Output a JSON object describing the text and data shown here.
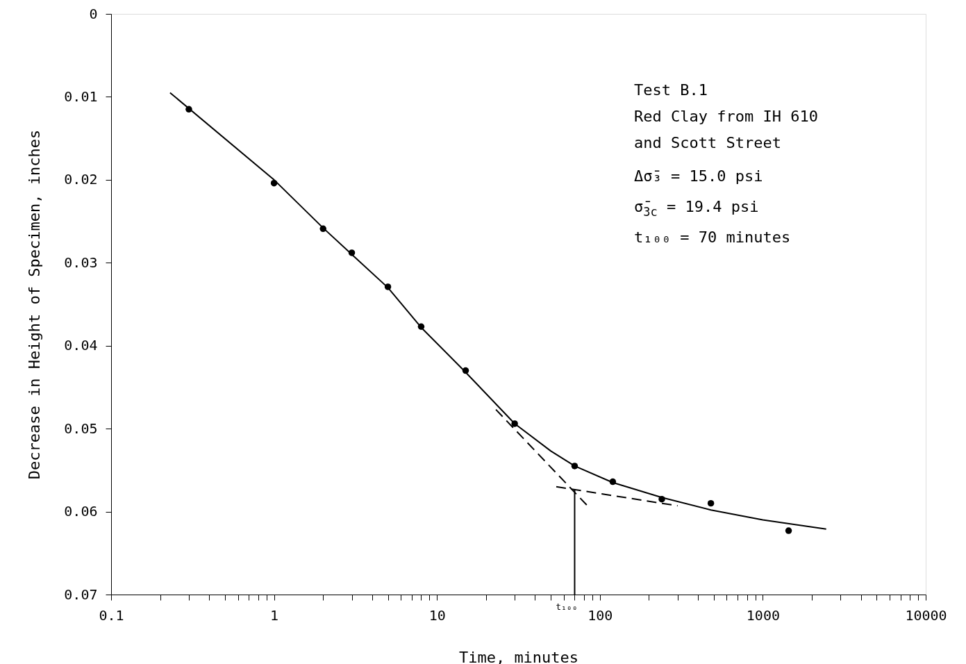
{
  "chart_data": {
    "type": "scatter",
    "xlabel": "Time, minutes",
    "ylabel": "Decrease in Height of Specimen, inches",
    "log": "x",
    "grid": false,
    "xlim": [
      0.1,
      10000
    ],
    "ylim": [
      0.07,
      0
    ],
    "xticks": [
      0.1,
      {
        "value": 0.2,
        "label": null
      },
      {
        "value": 0.3,
        "label": null
      },
      {
        "value": 0.4,
        "label": null
      },
      {
        "value": 0.5,
        "label": null
      },
      {
        "value": 0.6,
        "label": null
      },
      {
        "value": 0.7,
        "label": null
      },
      {
        "value": 0.8,
        "label": null
      },
      {
        "value": 0.9,
        "label": null
      },
      1,
      {
        "value": 2,
        "label": null
      },
      {
        "value": 3,
        "label": null
      },
      {
        "value": 4,
        "label": null
      },
      {
        "value": 5,
        "label": null
      },
      {
        "value": 6,
        "label": null
      },
      {
        "value": 7,
        "label": null
      },
      {
        "value": 8,
        "label": null
      },
      {
        "value": 9,
        "label": null
      },
      10,
      {
        "value": 20,
        "label": null
      },
      {
        "value": 30,
        "label": null
      },
      {
        "value": 40,
        "label": null
      },
      {
        "value": 50,
        "label": null
      },
      {
        "value": 60,
        "label": null
      },
      {
        "value": 70,
        "label": null
      },
      {
        "value": 80,
        "label": null
      },
      {
        "value": 90,
        "label": null
      },
      100,
      {
        "value": 200,
        "label": null
      },
      {
        "value": 300,
        "label": null
      },
      {
        "value": 400,
        "label": null
      },
      {
        "value": 500,
        "label": null
      },
      {
        "value": 600,
        "label": null
      },
      {
        "value": 700,
        "label": null
      },
      {
        "value": 800,
        "label": null
      },
      {
        "value": 900,
        "label": null
      },
      1000,
      {
        "value": 2000,
        "label": null
      },
      {
        "value": 3000,
        "label": null
      },
      {
        "value": 4000,
        "label": null
      },
      {
        "value": 5000,
        "label": null
      },
      {
        "value": 6000,
        "label": null
      },
      {
        "value": 7000,
        "label": null
      },
      {
        "value": 8000,
        "label": null
      },
      {
        "value": 9000,
        "label": null
      },
      10000
    ],
    "yticks": [
      0,
      0.01,
      0.02,
      0.03,
      0.04,
      0.05,
      0.06,
      0.07
    ],
    "series": [
      {
        "marker": "circle",
        "color": "#000000",
        "x": [
          0.3,
          1,
          2,
          3,
          5,
          8,
          15,
          30,
          70,
          120,
          240,
          480,
          1440
        ],
        "values": [
          0.0115,
          0.0204,
          0.0259,
          0.0288,
          0.0329,
          0.0377,
          0.043,
          0.0494,
          0.0545,
          0.0564,
          0.0585,
          0.059,
          0.0623
        ]
      },
      {
        "type": "line",
        "line_style": "solid",
        "color": "#000000",
        "x": [
          0.23,
          1,
          2,
          3,
          5,
          8,
          15,
          30,
          50,
          70,
          120,
          240,
          480,
          1000,
          2450
        ],
        "values": [
          0.0095,
          0.02,
          0.0258,
          0.029,
          0.033,
          0.0378,
          0.0432,
          0.0494,
          0.0527,
          0.0545,
          0.0565,
          0.0583,
          0.0598,
          0.061,
          0.0621
        ]
      },
      {
        "type": "line",
        "line_style": "dashed",
        "color": "#000000",
        "x": [
          23,
          83
        ],
        "values": [
          0.0477,
          0.0592
        ]
      },
      {
        "type": "line",
        "line_style": "dashed",
        "color": "#000000",
        "x": [
          54,
          300
        ],
        "values": [
          0.057,
          0.0593
        ]
      },
      {
        "type": "line",
        "line_style": "solid",
        "color": "#000000",
        "x": [
          70,
          70
        ],
        "values": [
          0.0573,
          0.07
        ]
      }
    ],
    "annotations": [
      "Test B.1",
      "Red Clay from IH 610",
      "and Scott Street",
      "Δσ̄₃ = 15.0 psi",
      "σ̄$_{3c}$ = 19.4 psi",
      "t₁₀₀ = 70 minutes",
      {
        "text": "t₁₀₀",
        "x": 70,
        "y": 0.07
      }
    ]
  }
}
